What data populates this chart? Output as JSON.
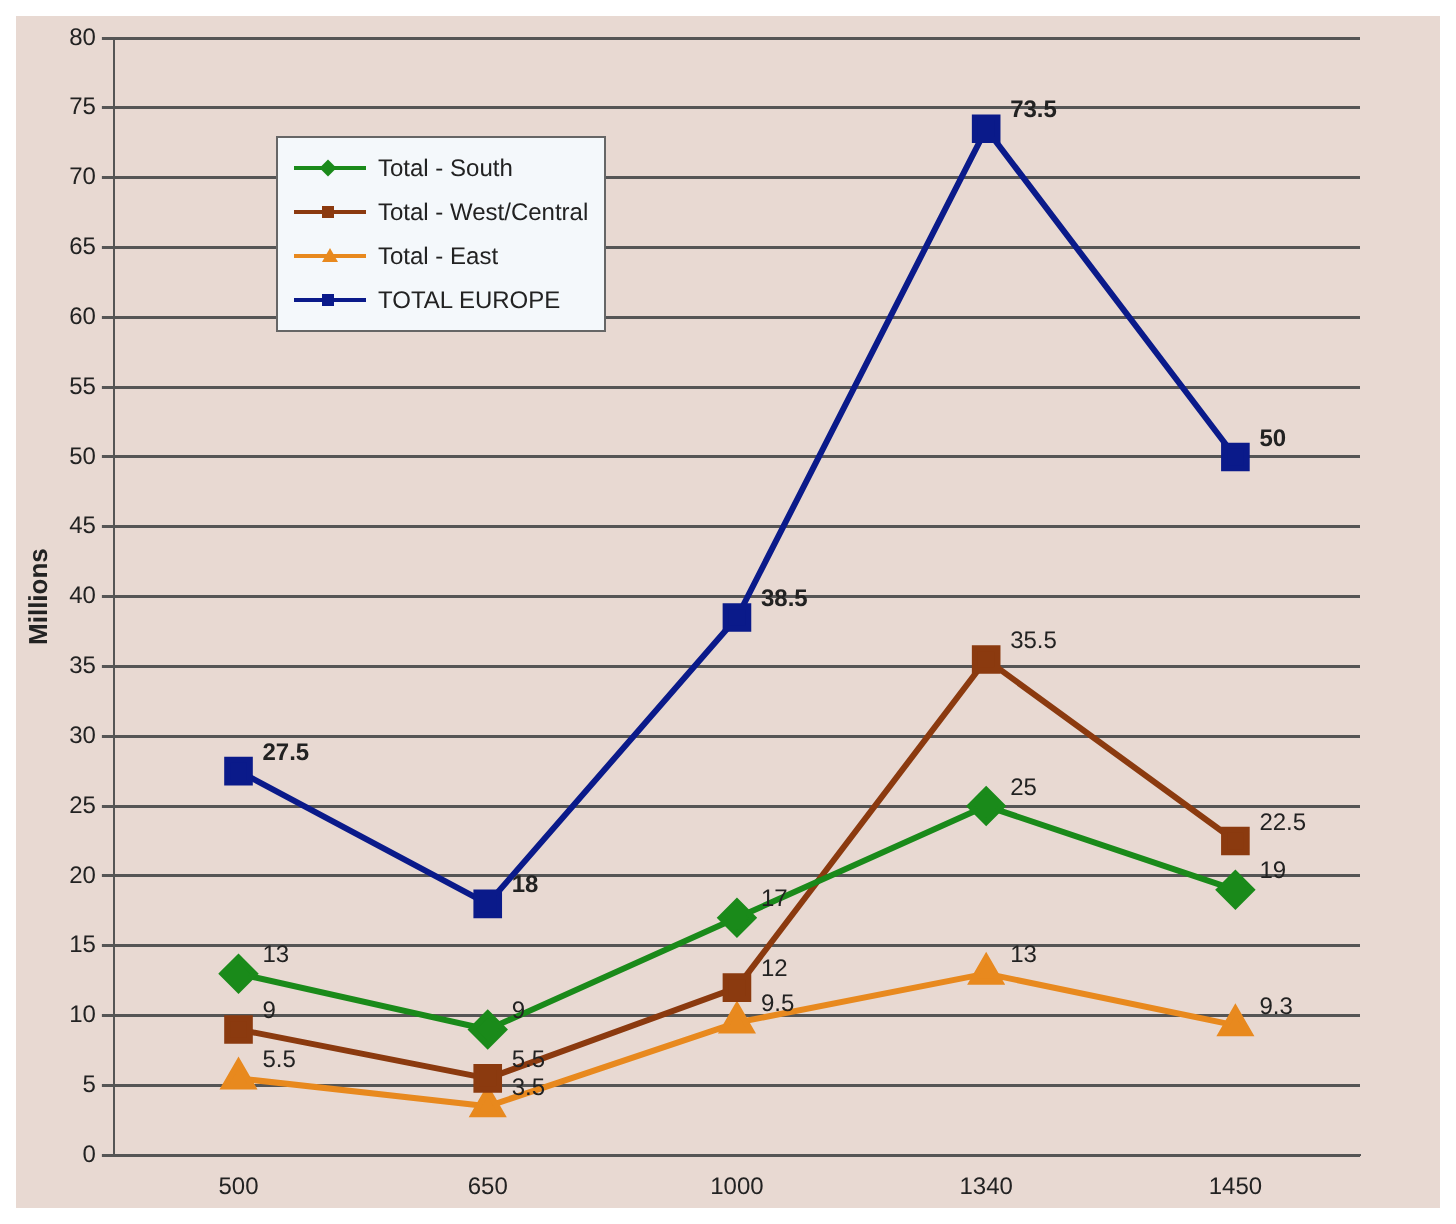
{
  "chart_data": {
    "type": "line",
    "ylabel": "Millions",
    "categories": [
      "500",
      "650",
      "1000",
      "1340",
      "1450"
    ],
    "series": [
      {
        "name": "Total - South",
        "color": "#1a8a1a",
        "marker": "diamond",
        "values": [
          13,
          9,
          17,
          25,
          19
        ]
      },
      {
        "name": "Total - West/Central",
        "color": "#8b3a0f",
        "marker": "square",
        "values": [
          9,
          5.5,
          12,
          35.5,
          22.5
        ]
      },
      {
        "name": "Total - East",
        "color": "#e8891e",
        "marker": "triangle",
        "values": [
          5.5,
          3.5,
          9.5,
          13,
          9.3
        ]
      },
      {
        "name": "TOTAL EUROPE",
        "color": "#0a1a8a",
        "marker": "square",
        "values": [
          27.5,
          18,
          38.5,
          73.5,
          50
        ]
      }
    ],
    "ylim": [
      0,
      80
    ],
    "yticks": [
      0,
      5,
      10,
      15,
      20,
      25,
      30,
      35,
      40,
      45,
      50,
      55,
      60,
      65,
      70,
      75,
      80
    ],
    "grid": "y",
    "legend": "top left",
    "data_labels": true,
    "line_style": "solid"
  }
}
